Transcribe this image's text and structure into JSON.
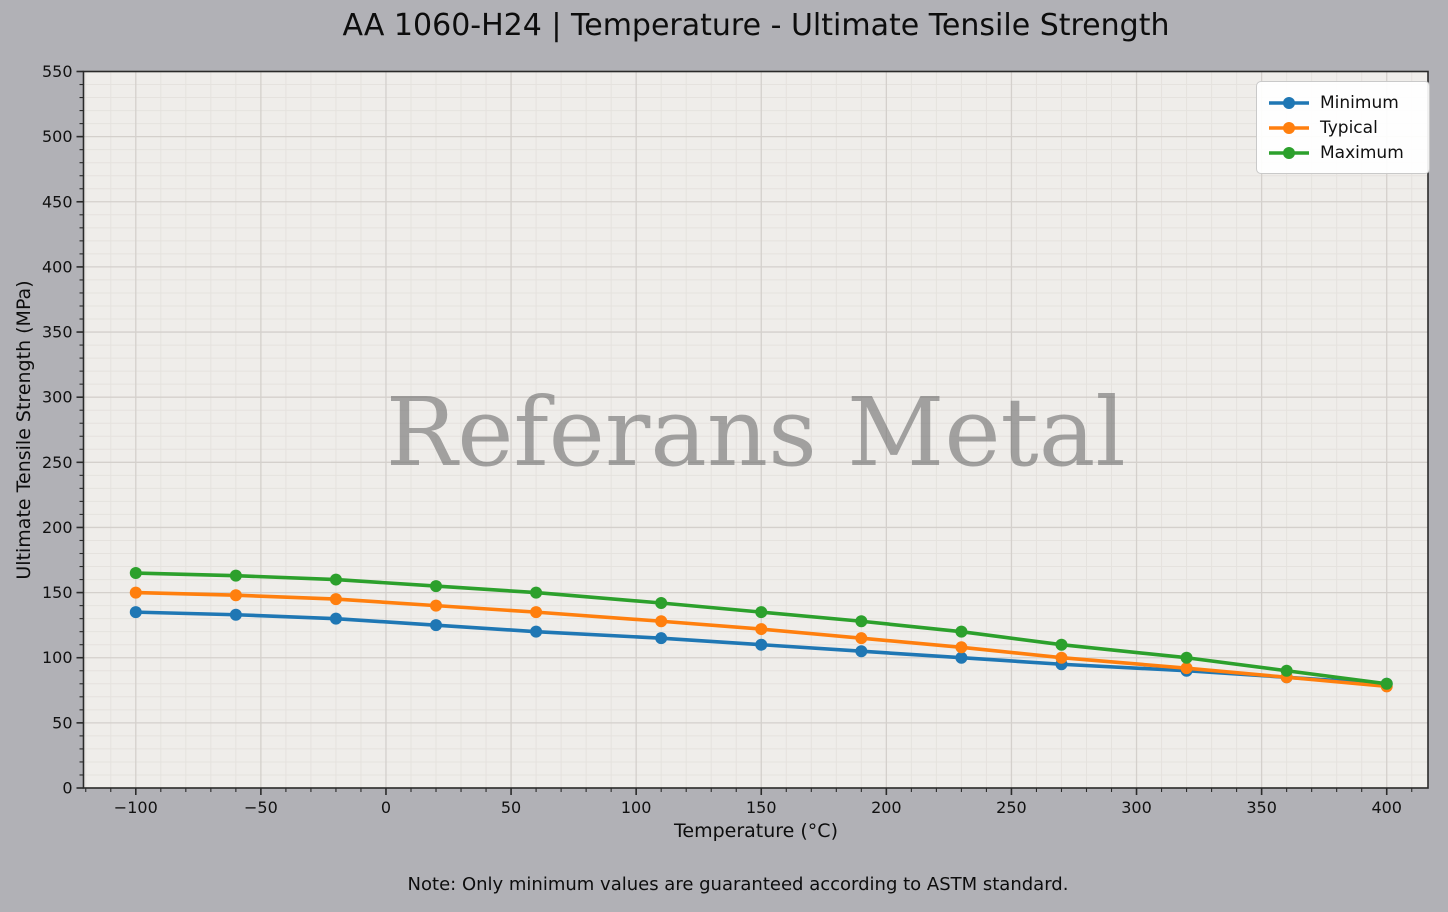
{
  "title": "AA 1060-H24 | Temperature - Ultimate Tensile Strength",
  "watermark": "Referans Metal",
  "footnote": "Note: Only minimum values are guaranteed according to ASTM standard.",
  "colors": {
    "figure_bg": "#b1b1b6",
    "plot_bg": "#efedea",
    "grid_major": "#d4d0cc",
    "grid_minor": "#e5e2de",
    "spine": "#2a2a2a",
    "tick_label": "#111111",
    "watermark": "#6e6e6e",
    "legend_border": "#c9c9c9"
  },
  "chart_data": {
    "type": "line",
    "title": "AA 1060-H24 | Temperature - Ultimate Tensile Strength",
    "xlabel": "Temperature (°C)",
    "ylabel": "Ultimate Tensile Strength (MPa)",
    "x": [
      -100,
      -60,
      -20,
      20,
      60,
      110,
      150,
      190,
      230,
      270,
      320,
      360,
      400
    ],
    "series": [
      {
        "name": "Minimum",
        "color": "#1f77b4",
        "values": [
          135,
          133,
          130,
          125,
          120,
          115,
          110,
          105,
          100,
          95,
          90,
          85,
          80
        ]
      },
      {
        "name": "Typical",
        "color": "#ff7f0e",
        "values": [
          150,
          148,
          145,
          140,
          135,
          128,
          122,
          115,
          108,
          100,
          92,
          85,
          78
        ]
      },
      {
        "name": "Maximum",
        "color": "#2ca02c",
        "values": [
          165,
          163,
          160,
          155,
          150,
          142,
          135,
          128,
          120,
          110,
          100,
          90,
          80
        ]
      }
    ],
    "xlim": [
      -120.9,
      416.5
    ],
    "ylim": [
      0,
      550
    ],
    "x_ticks": [
      -100,
      -50,
      0,
      50,
      100,
      150,
      200,
      250,
      300,
      350,
      400
    ],
    "y_ticks": [
      0,
      50,
      100,
      150,
      200,
      250,
      300,
      350,
      400,
      450,
      500,
      550
    ],
    "x_minor_step": 10,
    "y_minor_step": 10,
    "grid": true,
    "legend_position": "top-right",
    "legend_entries": [
      "Minimum",
      "Typical",
      "Maximum"
    ]
  }
}
